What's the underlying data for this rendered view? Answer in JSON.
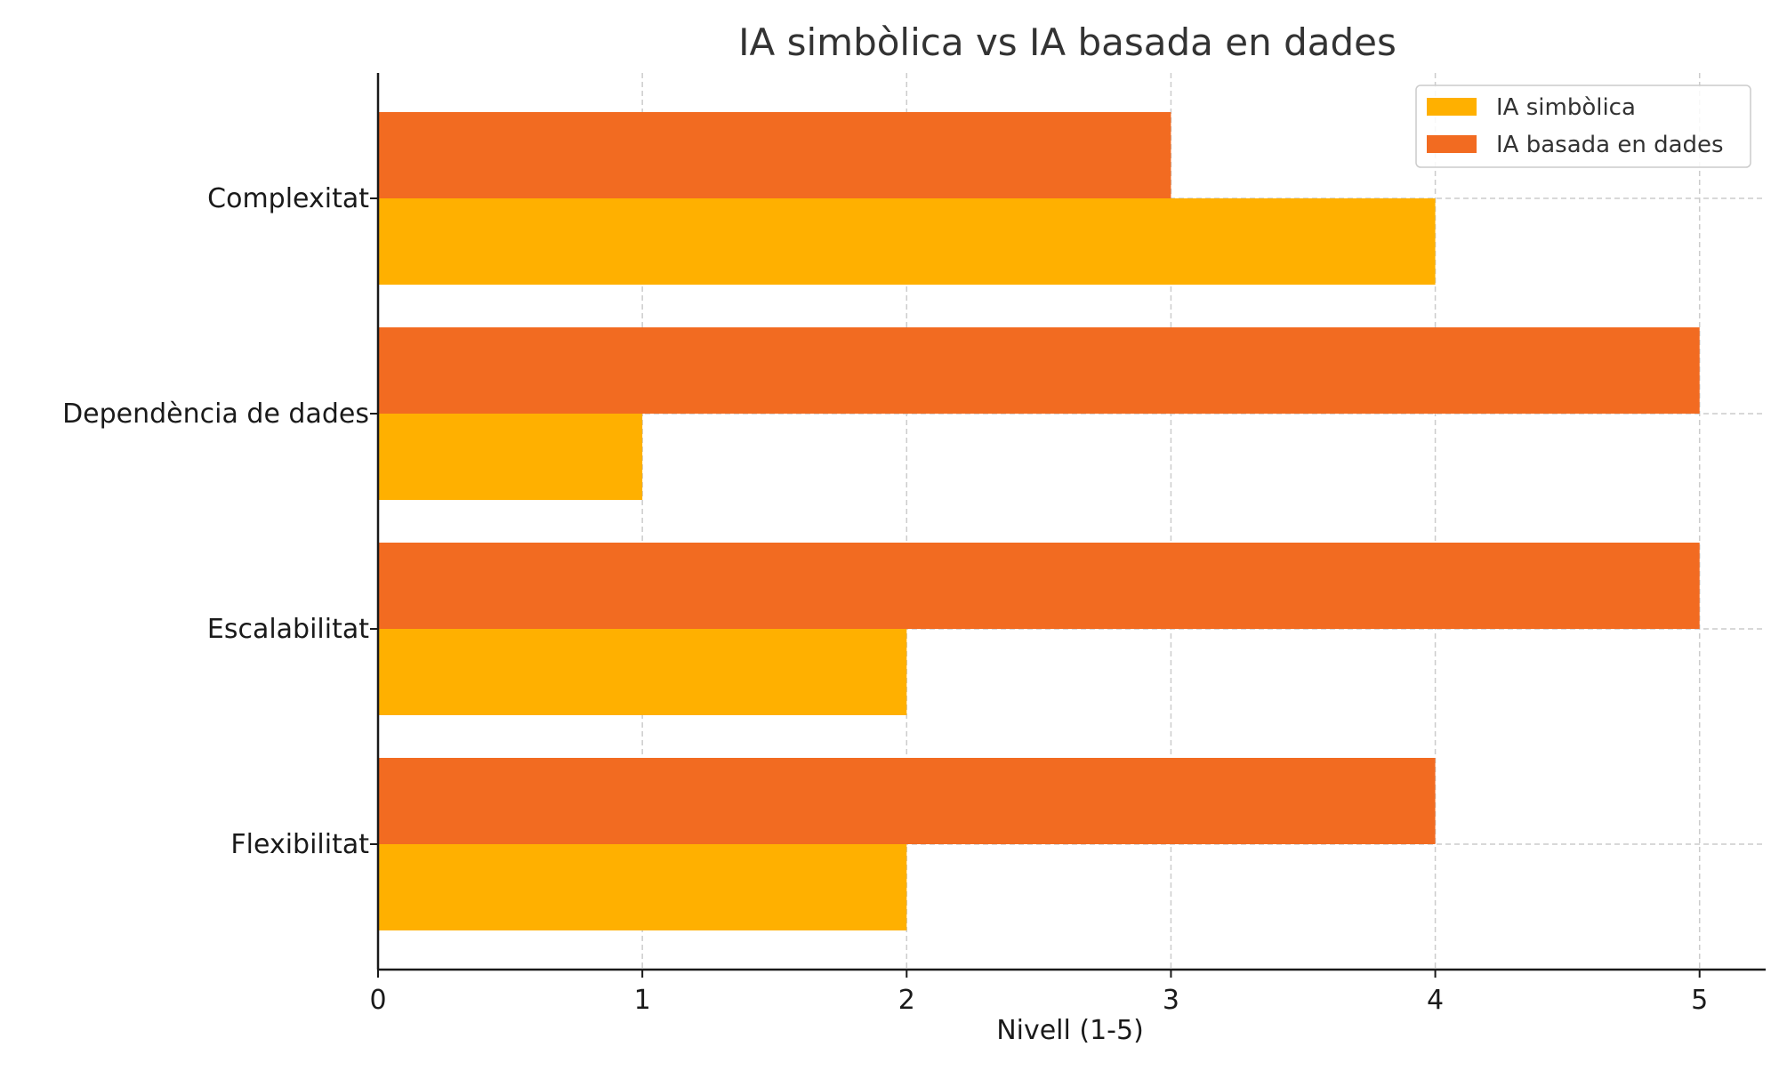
{
  "chart_data": {
    "type": "bar",
    "orientation": "horizontal",
    "title": "IA simbòlica vs IA basada en dades",
    "xlabel": "Nivell (1-5)",
    "ylabel": "",
    "categories": [
      "Complexitat",
      "Dependència de dades",
      "Escalabilitat",
      "Flexibilitat"
    ],
    "series": [
      {
        "name": "IA simbòlica",
        "color": "#FFB000",
        "values": [
          4,
          1,
          2,
          2
        ]
      },
      {
        "name": "IA basada en dades",
        "color": "#F26B21",
        "values": [
          3,
          5,
          5,
          4
        ]
      }
    ],
    "xlim": [
      0,
      5.25
    ],
    "xticks": [
      0,
      1,
      2,
      3,
      4,
      5
    ],
    "grid": true,
    "legend_position": "top-right"
  }
}
